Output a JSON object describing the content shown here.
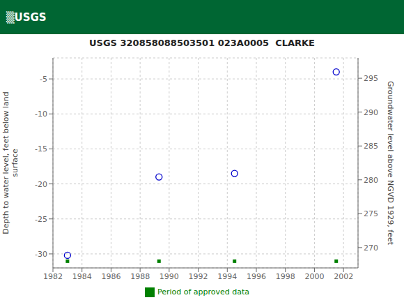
{
  "chart_data": {
    "type": "scatter",
    "title": "USGS 320858088503501 023A0005  CLARKE",
    "annotations": [
      {
        "text": "▒USGS",
        "background": "#006633"
      }
    ],
    "y_label": "Depth to water level, feet below land\nsurface",
    "y2_label": "Groundwater level above NGVD 1929, feet",
    "xlim": [
      1982,
      2003
    ],
    "xticks": [
      1982,
      1984,
      1986,
      1988,
      1990,
      1992,
      1994,
      1996,
      1998,
      2000,
      2002
    ],
    "ylim": [
      -32,
      -2
    ],
    "yticks": [
      -30,
      -25,
      -20,
      -15,
      -10,
      -5
    ],
    "y2lim": [
      267,
      298
    ],
    "y2ticks": [
      295,
      290,
      285,
      280,
      275,
      270
    ],
    "grid": true,
    "legend": "bottom",
    "series": [
      {
        "x": [
          1983.0,
          1989.3,
          1994.5,
          2001.5
        ],
        "values": [
          -30.2,
          -19.0,
          -18.5,
          -4.0
        ],
        "color": "#0000cc",
        "marker": "circle"
      },
      {
        "name": "Period of approved data",
        "x": [
          1983.0,
          1989.3,
          1994.5,
          2001.5
        ],
        "values": [
          -31.04,
          -31.04,
          -31.04,
          -31.04
        ],
        "color": "#008000",
        "marker": "square"
      }
    ]
  }
}
